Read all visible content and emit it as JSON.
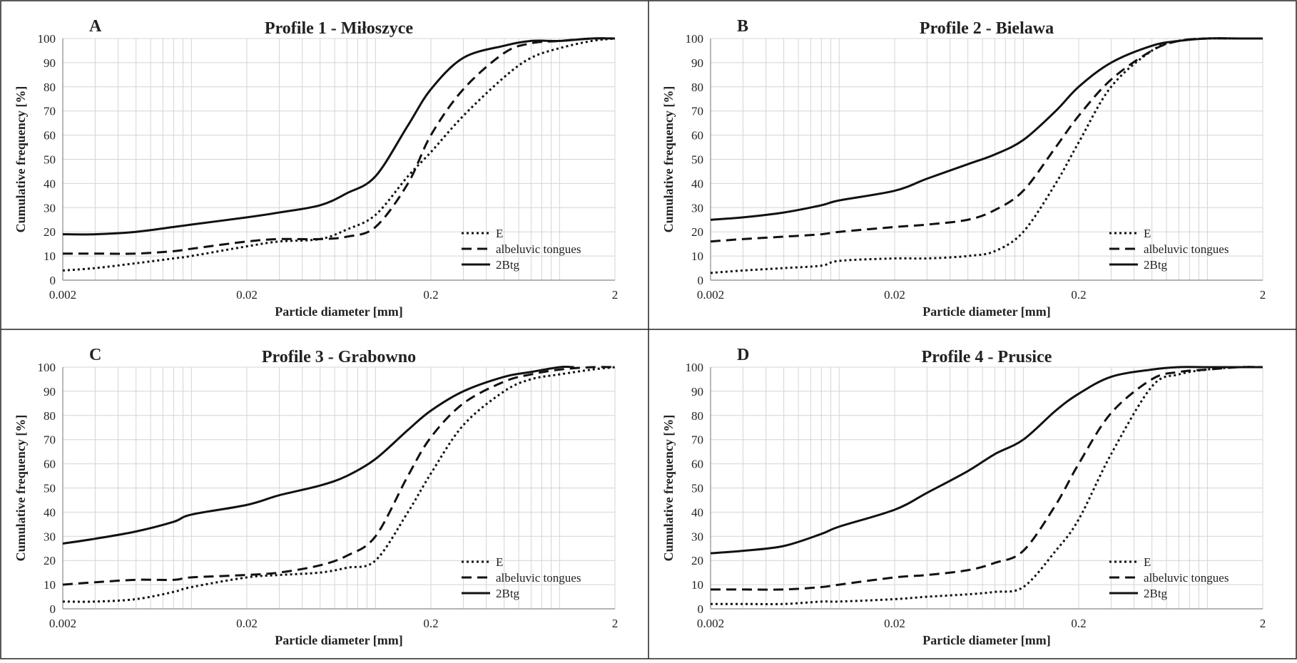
{
  "chart_data": [
    {
      "type": "line",
      "panel_label": "A",
      "title": "Profile 1 - Miłoszyce",
      "xlabel": "Particle diameter [mm]",
      "ylabel": "Cumulative frequency [%]",
      "xscale": "log",
      "xlim": [
        0.002,
        2
      ],
      "ylim": [
        0,
        100
      ],
      "xticks": [
        "0.002",
        "0.02",
        "0.2",
        "2"
      ],
      "yticks": [
        0,
        10,
        20,
        30,
        40,
        50,
        60,
        70,
        80,
        90,
        100
      ],
      "grid": true,
      "legend_position": "bottom-right",
      "series": [
        {
          "name": "E",
          "style": "dotted",
          "x": [
            0.002,
            0.003,
            0.005,
            0.008,
            0.01,
            0.02,
            0.03,
            0.05,
            0.07,
            0.1,
            0.15,
            0.2,
            0.3,
            0.5,
            0.7,
            1.0,
            1.5,
            2.0
          ],
          "y": [
            4,
            5,
            7,
            9,
            10,
            14,
            16,
            17,
            21,
            27,
            43,
            53,
            68,
            84,
            92,
            96,
            99,
            100
          ]
        },
        {
          "name": "albeluvic tongues",
          "style": "dashed",
          "x": [
            0.002,
            0.003,
            0.005,
            0.008,
            0.01,
            0.02,
            0.03,
            0.05,
            0.07,
            0.1,
            0.15,
            0.2,
            0.3,
            0.5,
            0.7,
            1.0,
            1.5,
            2.0
          ],
          "y": [
            11,
            11,
            11,
            12,
            13,
            16,
            17,
            17,
            18,
            22,
            40,
            60,
            79,
            94,
            98,
            99,
            100,
            100
          ]
        },
        {
          "name": "2Btg",
          "style": "solid",
          "x": [
            0.002,
            0.003,
            0.005,
            0.008,
            0.01,
            0.02,
            0.03,
            0.05,
            0.07,
            0.1,
            0.15,
            0.2,
            0.3,
            0.5,
            0.7,
            1.0,
            1.5,
            2.0
          ],
          "y": [
            19,
            19,
            20,
            22,
            23,
            26,
            28,
            31,
            36,
            43,
            64,
            79,
            92,
            97,
            99,
            99,
            100,
            100
          ]
        }
      ]
    },
    {
      "type": "line",
      "panel_label": "B",
      "title": "Profile 2 - Bielawa",
      "xlabel": "Particle diameter [mm]",
      "ylabel": "Cumulative frequency [%]",
      "xscale": "log",
      "xlim": [
        0.002,
        2
      ],
      "ylim": [
        0,
        100
      ],
      "xticks": [
        "0.002",
        "0.02",
        "0.2",
        "2"
      ],
      "yticks": [
        0,
        10,
        20,
        30,
        40,
        50,
        60,
        70,
        80,
        90,
        100
      ],
      "grid": true,
      "legend_position": "bottom-right",
      "series": [
        {
          "name": "E",
          "style": "dotted",
          "x": [
            0.002,
            0.003,
            0.005,
            0.008,
            0.01,
            0.02,
            0.03,
            0.05,
            0.07,
            0.1,
            0.15,
            0.2,
            0.3,
            0.5,
            0.7,
            1.0,
            1.5,
            2.0
          ],
          "y": [
            3,
            4,
            5,
            6,
            8,
            9,
            9,
            10,
            12,
            20,
            40,
            57,
            80,
            95,
            99,
            100,
            100,
            100
          ]
        },
        {
          "name": "albeluvic tongues",
          "style": "dashed",
          "x": [
            0.002,
            0.003,
            0.005,
            0.008,
            0.01,
            0.02,
            0.03,
            0.05,
            0.07,
            0.1,
            0.15,
            0.2,
            0.3,
            0.5,
            0.7,
            1.0,
            1.5,
            2.0
          ],
          "y": [
            16,
            17,
            18,
            19,
            20,
            22,
            23,
            25,
            29,
            37,
            55,
            68,
            83,
            95,
            99,
            100,
            100,
            100
          ]
        },
        {
          "name": "2Btg",
          "style": "solid",
          "x": [
            0.002,
            0.003,
            0.005,
            0.008,
            0.01,
            0.02,
            0.03,
            0.05,
            0.07,
            0.1,
            0.15,
            0.2,
            0.3,
            0.5,
            0.7,
            1.0,
            1.5,
            2.0
          ],
          "y": [
            25,
            26,
            28,
            31,
            33,
            37,
            42,
            48,
            52,
            58,
            70,
            80,
            90,
            97,
            99,
            100,
            100,
            100
          ]
        }
      ]
    },
    {
      "type": "line",
      "panel_label": "C",
      "title": "Profile 3 - Grabowno",
      "xlabel": "Particle diameter [mm]",
      "ylabel": "Cumulative frequency [%]",
      "xscale": "log",
      "xlim": [
        0.002,
        2
      ],
      "ylim": [
        0,
        100
      ],
      "xticks": [
        "0.002",
        "0.02",
        "0.2",
        "2"
      ],
      "yticks": [
        0,
        10,
        20,
        30,
        40,
        50,
        60,
        70,
        80,
        90,
        100
      ],
      "grid": true,
      "legend_position": "bottom-right",
      "series": [
        {
          "name": "E",
          "style": "dotted",
          "x": [
            0.002,
            0.003,
            0.005,
            0.008,
            0.01,
            0.02,
            0.03,
            0.05,
            0.07,
            0.1,
            0.15,
            0.2,
            0.3,
            0.5,
            0.7,
            1.0,
            1.5,
            2.0
          ],
          "y": [
            3,
            3,
            4,
            7,
            9,
            13,
            14,
            15,
            17,
            20,
            40,
            56,
            76,
            90,
            95,
            97,
            99,
            100
          ]
        },
        {
          "name": "albeluvic tongues",
          "style": "dashed",
          "x": [
            0.002,
            0.003,
            0.005,
            0.008,
            0.01,
            0.02,
            0.03,
            0.05,
            0.07,
            0.1,
            0.15,
            0.2,
            0.3,
            0.5,
            0.7,
            1.0,
            1.5,
            2.0
          ],
          "y": [
            10,
            11,
            12,
            12,
            13,
            14,
            15,
            18,
            22,
            30,
            55,
            71,
            85,
            94,
            97,
            99,
            100,
            100
          ]
        },
        {
          "name": "2Btg",
          "style": "solid",
          "x": [
            0.002,
            0.003,
            0.005,
            0.008,
            0.01,
            0.02,
            0.03,
            0.05,
            0.07,
            0.1,
            0.15,
            0.2,
            0.3,
            0.5,
            0.7,
            1.0,
            1.2
          ],
          "y": [
            27,
            29,
            32,
            36,
            39,
            43,
            47,
            51,
            55,
            62,
            74,
            82,
            90,
            96,
            98,
            100,
            100
          ]
        }
      ]
    },
    {
      "type": "line",
      "panel_label": "D",
      "title": "Profile 4 - Prusice",
      "xlabel": "Particle diameter [mm]",
      "ylabel": "Cumulative frequency [%]",
      "xscale": "log",
      "xlim": [
        0.002,
        2
      ],
      "ylim": [
        0,
        100
      ],
      "xticks": [
        "0.002",
        "0.02",
        "0.2",
        "2"
      ],
      "yticks": [
        0,
        10,
        20,
        30,
        40,
        50,
        60,
        70,
        80,
        90,
        100
      ],
      "grid": true,
      "legend_position": "bottom-right",
      "series": [
        {
          "name": "E",
          "style": "dotted",
          "x": [
            0.002,
            0.003,
            0.005,
            0.008,
            0.01,
            0.02,
            0.03,
            0.05,
            0.07,
            0.1,
            0.15,
            0.2,
            0.3,
            0.5,
            0.7,
            1.0,
            1.5,
            2.0
          ],
          "y": [
            2,
            2,
            2,
            3,
            3,
            4,
            5,
            6,
            7,
            9,
            24,
            37,
            64,
            92,
            97,
            99,
            100,
            100
          ]
        },
        {
          "name": "albeluvic tongues",
          "style": "dashed",
          "x": [
            0.002,
            0.003,
            0.005,
            0.008,
            0.01,
            0.02,
            0.03,
            0.05,
            0.07,
            0.1,
            0.15,
            0.2,
            0.3,
            0.5,
            0.7,
            1.0,
            1.5,
            2.0
          ],
          "y": [
            8,
            8,
            8,
            9,
            10,
            13,
            14,
            16,
            19,
            24,
            43,
            60,
            81,
            95,
            98,
            99,
            100,
            100
          ]
        },
        {
          "name": "2Btg",
          "style": "solid",
          "x": [
            0.002,
            0.003,
            0.005,
            0.008,
            0.01,
            0.02,
            0.03,
            0.05,
            0.07,
            0.1,
            0.15,
            0.2,
            0.3,
            0.5,
            0.7,
            1.0,
            1.5,
            2.0
          ],
          "y": [
            23,
            24,
            26,
            31,
            34,
            41,
            48,
            57,
            64,
            70,
            82,
            89,
            96,
            99,
            100,
            100,
            100,
            100
          ]
        }
      ]
    }
  ]
}
